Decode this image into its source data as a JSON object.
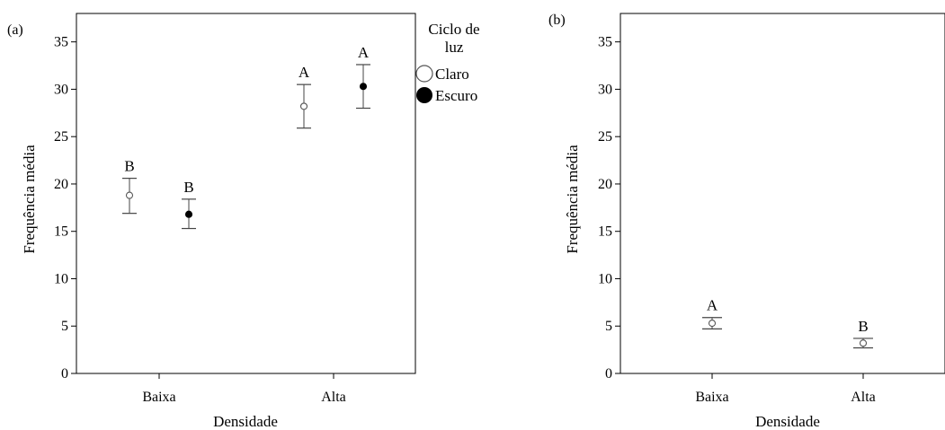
{
  "chart_data": [
    {
      "type": "scatter",
      "panel_label": "(a)",
      "xlabel": "Densidade",
      "ylabel": "Frequência média",
      "categories": [
        "Baixa",
        "Alta"
      ],
      "ylim": [
        0,
        38
      ],
      "yticks": [
        0,
        5,
        10,
        15,
        20,
        25,
        30,
        35
      ],
      "legend": {
        "title_lines": [
          "Ciclo de",
          "luz"
        ],
        "placement": "right",
        "entries": [
          "Claro",
          "Escuro"
        ]
      },
      "series": [
        {
          "name": "Claro",
          "marker": "open-circle",
          "color": "#666666",
          "points": [
            {
              "category": "Baixa",
              "mean": 18.8,
              "lower": 16.9,
              "upper": 20.6,
              "label": "B"
            },
            {
              "category": "Alta",
              "mean": 28.2,
              "lower": 25.9,
              "upper": 30.5,
              "label": "A"
            }
          ]
        },
        {
          "name": "Escuro",
          "marker": "filled-circle",
          "color": "#000000",
          "points": [
            {
              "category": "Baixa",
              "mean": 16.8,
              "lower": 15.3,
              "upper": 18.4,
              "label": "B"
            },
            {
              "category": "Alta",
              "mean": 30.3,
              "lower": 28.0,
              "upper": 32.6,
              "label": "A"
            }
          ]
        }
      ]
    },
    {
      "type": "scatter",
      "panel_label": "(b)",
      "xlabel": "Densidade",
      "ylabel": "Frequência média",
      "categories": [
        "Baixa",
        "Alta"
      ],
      "ylim": [
        0,
        38
      ],
      "yticks": [
        0,
        5,
        10,
        15,
        20,
        25,
        30,
        35
      ],
      "series": [
        {
          "marker": "open-circle",
          "color": "#666666",
          "points": [
            {
              "category": "Baixa",
              "mean": 5.3,
              "lower": 4.7,
              "upper": 5.9,
              "label": "A"
            },
            {
              "category": "Alta",
              "mean": 3.2,
              "lower": 2.7,
              "upper": 3.7,
              "label": "B"
            }
          ]
        }
      ]
    }
  ]
}
